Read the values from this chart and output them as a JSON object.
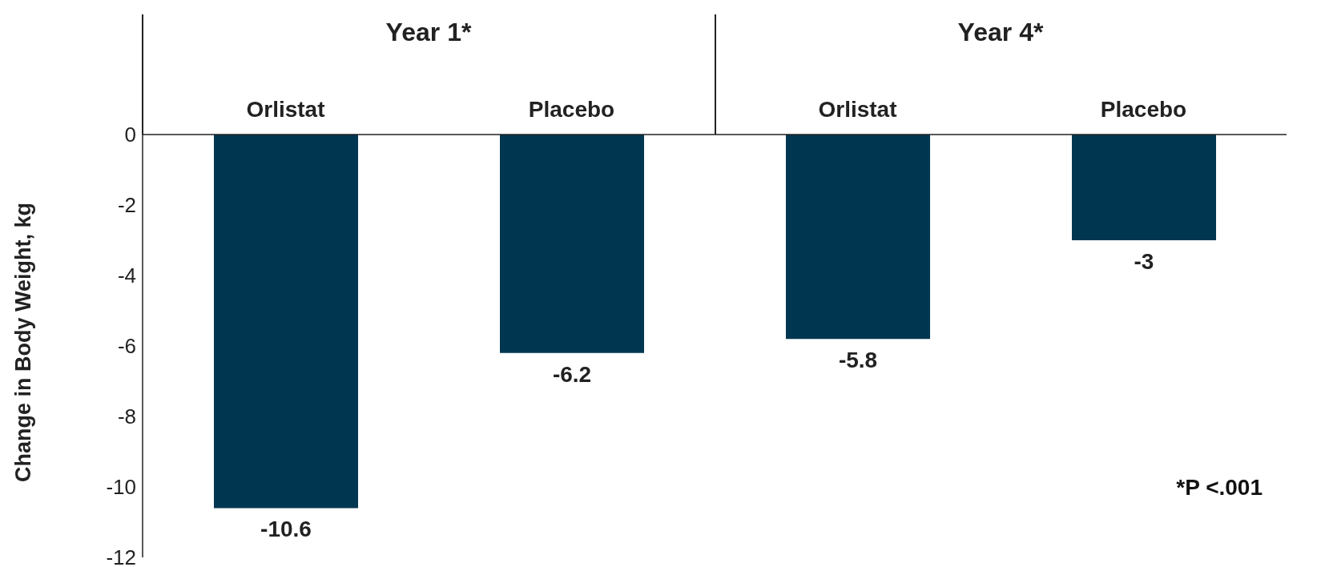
{
  "chart_data": {
    "type": "bar",
    "ylabel": "Change in Body Weight, kg",
    "categories": [
      "Orlistat",
      "Placebo",
      "Orlistat",
      "Placebo"
    ],
    "values": [
      -10.6,
      -6.2,
      -5.8,
      -3
    ],
    "color": "#003650",
    "ylim": [
      -12,
      0
    ],
    "yticks": [
      -12,
      -10,
      -8,
      -6,
      -4,
      -2,
      0
    ],
    "data_labels": true,
    "annotations": [
      "Year 1*",
      "Year 4*",
      "*P <.001"
    ]
  }
}
